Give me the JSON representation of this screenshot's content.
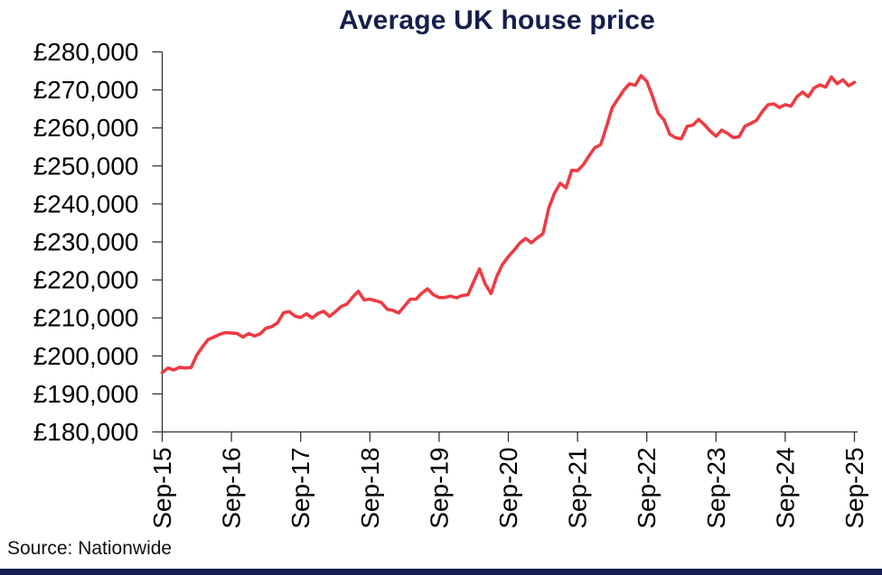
{
  "page": {
    "title": "Average UK house price",
    "source": "Source: Nationwide"
  },
  "colors": {
    "line": "#ee3b43",
    "title": "#141f4e",
    "axis": "#333333",
    "tick_label": "#000000",
    "bottom_bar": "#141f4e"
  },
  "chart_data": {
    "type": "line",
    "title": "Average UK house price",
    "source": "Source: Nationwide",
    "xlabel": "",
    "ylabel": "",
    "grid": false,
    "legend": false,
    "ylim": [
      180000,
      280000
    ],
    "y_tick_values": [
      180000,
      190000,
      200000,
      210000,
      220000,
      230000,
      240000,
      250000,
      260000,
      270000,
      280000
    ],
    "y_tick_labels": [
      "£180,000",
      "£190,000",
      "£200,000",
      "£210,000",
      "£220,000",
      "£230,000",
      "£240,000",
      "£250,000",
      "£260,000",
      "£270,000",
      "£280,000"
    ],
    "x_tick_labels": [
      "Sep-15",
      "Sep-16",
      "Sep-17",
      "Sep-18",
      "Sep-19",
      "Sep-20",
      "Sep-21",
      "Sep-22",
      "Sep-23",
      "Sep-24",
      "Sep-25"
    ],
    "x_interval": "monthly",
    "points_per_x_tick": 12,
    "series": [
      {
        "name": "Average UK house price",
        "start": "Sep-15",
        "end": "Sep-25",
        "values": [
          195585,
          196807,
          196305,
          196999,
          196829,
          196930,
          200251,
          202436,
          204368,
          204968,
          205715,
          206145,
          206015,
          205904,
          204947,
          205898,
          205240,
          205846,
          207308,
          207699,
          208711,
          211301,
          211671,
          210495,
          210116,
          211085,
          209988,
          211156,
          211756,
          210402,
          211625,
          213000,
          213618,
          215444,
          217010,
          214745,
          214922,
          214534,
          214044,
          212281,
          211966,
          211304,
          213102,
          214920,
          214946,
          216515,
          217663,
          216096,
          215352,
          215368,
          215734,
          215282,
          215897,
          216092,
          219583,
          222915,
          218902,
          216403,
          220936,
          224123,
          226129,
          227826,
          229721,
          230920,
          229748,
          231061,
          232134,
          238831,
          242832,
          245432,
          244229,
          248857,
          248742,
          250311,
          252687,
          254822,
          255556,
          260230,
          265312,
          267620,
          269914,
          271613,
          271209,
          273751,
          272259,
          268282,
          263788,
          262068,
          258297,
          257406,
          257122,
          260441,
          260736,
          262239,
          260828,
          259153,
          257808,
          259423,
          258557,
          257443,
          257656,
          260420,
          261142,
          261962,
          264249,
          266064,
          266334,
          265375,
          266094,
          265738,
          268144,
          269426,
          268213,
          270493,
          271316,
          270752,
          273427,
          271619,
          272664,
          271079,
          271995
        ]
      }
    ]
  }
}
